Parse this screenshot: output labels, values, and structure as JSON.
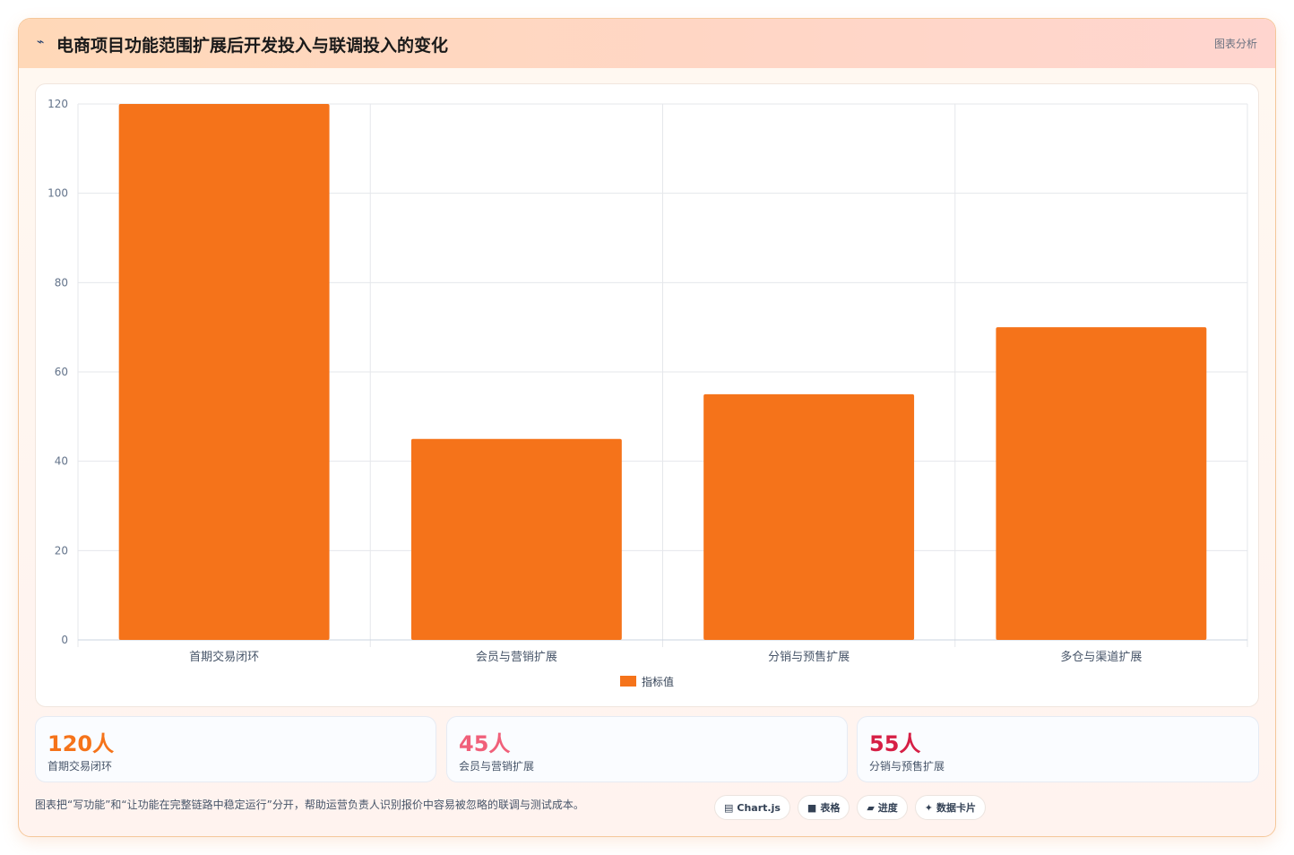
{
  "header": {
    "icon": "chart-line-icon",
    "title": "电商项目功能范围扩展后开发投入与联调投入的变化",
    "tag": "图表分析"
  },
  "chart_data": {
    "type": "bar",
    "categories": [
      "首期交易闭环",
      "会员与营销扩展",
      "分销与预售扩展",
      "多仓与渠道扩展"
    ],
    "series": [
      {
        "name": "指标值",
        "values": [
          120,
          45,
          55,
          70
        ],
        "color": "#f5731a"
      }
    ],
    "ylim": [
      0,
      120
    ],
    "yticks": [
      0,
      20,
      40,
      60,
      80,
      100,
      120
    ],
    "grid": true,
    "legend_position": "bottom"
  },
  "stats": [
    {
      "value": "120人",
      "label": "首期交易闭环",
      "color": "#f5731a"
    },
    {
      "value": "45人",
      "label": "会员与营销扩展",
      "color": "#f0607a"
    },
    {
      "value": "55人",
      "label": "分销与预售扩展",
      "color": "#d61f45"
    }
  ],
  "note": "图表把“写功能”和“让功能在完整链路中稳定运行”分开，帮助运营负责人识别报价中容易被忽略的联调与测试成本。",
  "pills": [
    {
      "icon": "chart-icon",
      "glyph": "▤",
      "label": "Chart.js"
    },
    {
      "icon": "table-icon",
      "glyph": "■",
      "label": "表格"
    },
    {
      "icon": "progress-icon",
      "glyph": "▰",
      "label": "进度"
    },
    {
      "icon": "card-icon",
      "glyph": "✦",
      "label": "数据卡片"
    }
  ]
}
